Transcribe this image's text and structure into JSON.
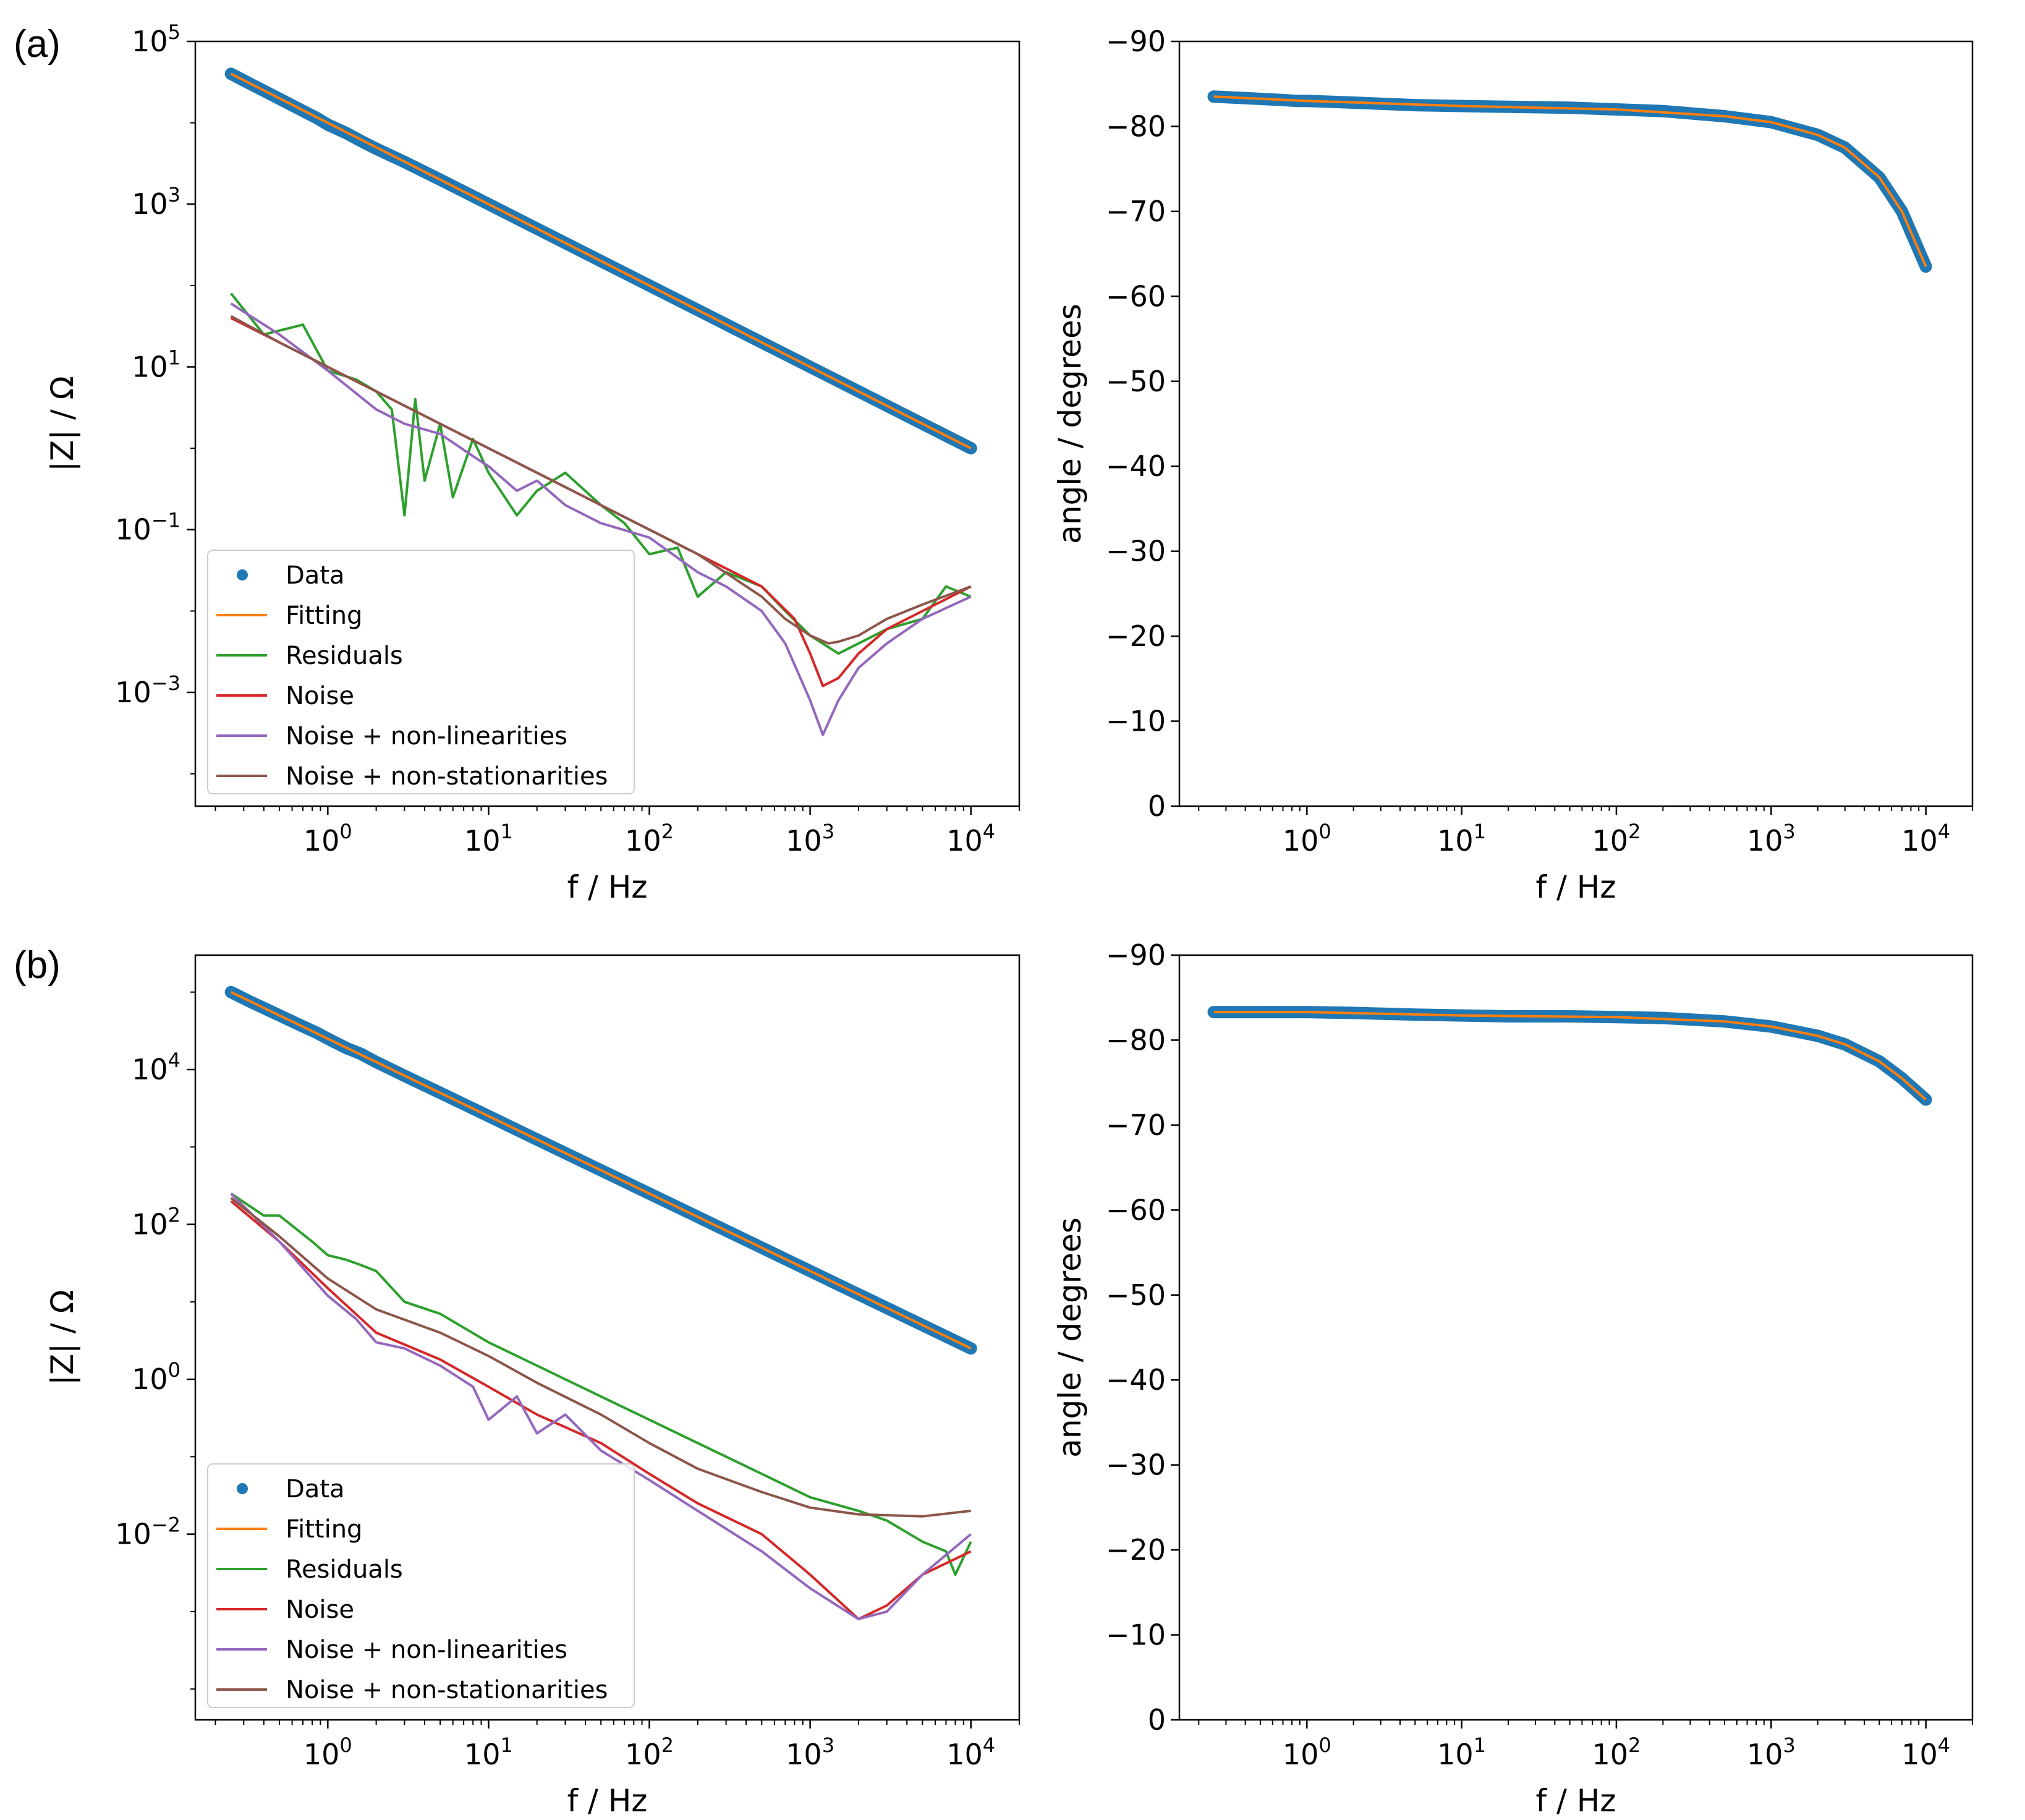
{
  "colors": {
    "data": "#1f77b4",
    "fitting": "#ff7f0e",
    "residuals": "#2ca02c",
    "noise": "#d62728",
    "noise_nonlin": "#9467bd",
    "noise_nonstat": "#8c564b"
  },
  "panels": [
    {
      "id": "a",
      "label": "(a)"
    },
    {
      "id": "b",
      "label": "(b)"
    }
  ],
  "chart_data": [
    {
      "id": "a-magnitude",
      "type": "line",
      "panel": "a",
      "title": "",
      "xlabel": "f / Hz",
      "ylabel": "|Z| / Ω",
      "xscale": "log",
      "yscale": "log",
      "xlim": [
        0.15,
        20000
      ],
      "ylim": [
        4e-05,
        100000
      ],
      "xticks": [
        {
          "base": "10",
          "exp": "0",
          "value": 1
        },
        {
          "base": "10",
          "exp": "1",
          "value": 10
        },
        {
          "base": "10",
          "exp": "2",
          "value": 100
        },
        {
          "base": "10",
          "exp": "3",
          "value": 1000
        },
        {
          "base": "10",
          "exp": "4",
          "value": 10000
        }
      ],
      "yticks": [
        {
          "base": "10",
          "exp": "5",
          "value": 100000
        },
        {
          "base": "10",
          "exp": "3",
          "value": 1000
        },
        {
          "base": "10",
          "exp": "1",
          "value": 10
        },
        {
          "base": "10",
          "exp": "−1",
          "value": 0.1
        },
        {
          "base": "10",
          "exp": "−3",
          "value": 0.001
        }
      ],
      "legend": {
        "position": "lower-left",
        "entries": [
          "Data",
          "Fitting",
          "Residuals",
          "Noise",
          "Noise + non-linearities",
          "Noise + non-stationarities"
        ]
      },
      "series": [
        {
          "name": "Data",
          "kind": "scatter",
          "color_key": "data",
          "x": [
            0.25,
            0.33,
            0.43,
            0.7,
            0.85,
            1.0,
            1.3,
            1.6,
            2,
            3,
            5,
            10,
            20,
            50,
            100,
            200,
            500,
            1000,
            2000,
            5000,
            10000
          ],
          "y": [
            40000,
            30000,
            23000,
            14000,
            11500,
            9500,
            7500,
            6000,
            4800,
            3300,
            2000,
            1000,
            500,
            200,
            100,
            50,
            20,
            10,
            5,
            2,
            1
          ]
        },
        {
          "name": "Fitting",
          "kind": "line",
          "color_key": "fitting",
          "x": [
            0.25,
            10000
          ],
          "y": [
            40000,
            1
          ]
        },
        {
          "name": "Residuals",
          "kind": "line",
          "color_key": "residuals",
          "x": [
            0.25,
            0.4,
            0.7,
            1.0,
            1.5,
            2.0,
            2.5,
            3,
            3.5,
            4,
            5,
            6,
            8,
            10,
            15,
            20,
            30,
            50,
            70,
            100,
            150,
            200,
            300,
            500,
            700,
            1000,
            1500,
            2000,
            3000,
            5000,
            7000,
            10000
          ],
          "y": [
            80,
            25,
            33,
            9,
            7,
            5,
            3,
            0.15,
            4,
            0.4,
            2,
            0.25,
            1.3,
            0.5,
            0.15,
            0.3,
            0.5,
            0.2,
            0.12,
            0.05,
            0.06,
            0.015,
            0.03,
            0.02,
            0.01,
            0.005,
            0.003,
            0.004,
            0.006,
            0.008,
            0.02,
            0.015
          ]
        },
        {
          "name": "Noise",
          "kind": "line",
          "color_key": "noise",
          "x": [
            0.25,
            0.5,
            1,
            2,
            5,
            10,
            20,
            50,
            100,
            200,
            500,
            800,
            1000,
            1200,
            1500,
            2000,
            3000,
            5000,
            10000
          ],
          "y": [
            40,
            20,
            10,
            5,
            2,
            1,
            0.5,
            0.2,
            0.1,
            0.05,
            0.02,
            0.008,
            0.003,
            0.0012,
            0.0015,
            0.003,
            0.006,
            0.01,
            0.02
          ]
        },
        {
          "name": "Noise + non-linearities",
          "kind": "line",
          "color_key": "noise_nonlin",
          "x": [
            0.25,
            0.5,
            1,
            2,
            3,
            5,
            8,
            10,
            15,
            20,
            30,
            50,
            100,
            200,
            300,
            500,
            700,
            1000,
            1200,
            1500,
            2000,
            3000,
            5000,
            10000
          ],
          "y": [
            60,
            25,
            9,
            3,
            2,
            1.5,
            0.8,
            0.6,
            0.3,
            0.4,
            0.2,
            0.12,
            0.08,
            0.03,
            0.02,
            0.01,
            0.004,
            0.0008,
            0.0003,
            0.0008,
            0.002,
            0.004,
            0.008,
            0.015
          ]
        },
        {
          "name": "Noise + non-stationarities",
          "kind": "line",
          "color_key": "noise_nonstat",
          "x": [
            0.25,
            0.5,
            1,
            2,
            5,
            10,
            20,
            50,
            100,
            200,
            500,
            700,
            1000,
            1300,
            1500,
            2000,
            3000,
            5000,
            10000
          ],
          "y": [
            42,
            20,
            10,
            5,
            2,
            1,
            0.5,
            0.2,
            0.1,
            0.05,
            0.015,
            0.008,
            0.005,
            0.004,
            0.0042,
            0.005,
            0.008,
            0.012,
            0.02
          ]
        }
      ]
    },
    {
      "id": "a-phase",
      "type": "scatter",
      "panel": "a",
      "title": "",
      "xlabel": "f / Hz",
      "ylabel": "angle / degrees",
      "xscale": "log",
      "yscale": "linear",
      "xlim": [
        0.15,
        20000
      ],
      "ylim": [
        0,
        -90
      ],
      "xticks": [
        {
          "base": "10",
          "exp": "0",
          "value": 1
        },
        {
          "base": "10",
          "exp": "1",
          "value": 10
        },
        {
          "base": "10",
          "exp": "2",
          "value": 100
        },
        {
          "base": "10",
          "exp": "3",
          "value": 1000
        },
        {
          "base": "10",
          "exp": "4",
          "value": 10000
        }
      ],
      "yticks": [
        {
          "label": "−90",
          "value": -90
        },
        {
          "label": "−80",
          "value": -80
        },
        {
          "label": "−70",
          "value": -70
        },
        {
          "label": "−60",
          "value": -60
        },
        {
          "label": "−50",
          "value": -50
        },
        {
          "label": "−40",
          "value": -40
        },
        {
          "label": "−30",
          "value": -30
        },
        {
          "label": "−20",
          "value": -20
        },
        {
          "label": "−10",
          "value": -10
        },
        {
          "label": "0",
          "value": 0
        }
      ],
      "series": [
        {
          "name": "Data",
          "kind": "scatter",
          "color_key": "data",
          "x": [
            0.25,
            0.33,
            0.43,
            0.7,
            0.85,
            1,
            2,
            5,
            10,
            20,
            50,
            100,
            200,
            500,
            1000,
            2000,
            3000,
            5000,
            7000,
            10000
          ],
          "y": [
            -83.5,
            -83.4,
            -83.3,
            -83.1,
            -83.0,
            -83,
            -82.8,
            -82.5,
            -82.4,
            -82.3,
            -82.2,
            -82.0,
            -81.8,
            -81.2,
            -80.5,
            -79,
            -77.5,
            -74,
            -70,
            -63.5
          ]
        },
        {
          "name": "Fitting",
          "kind": "line",
          "color_key": "fitting",
          "x": [
            0.25,
            1,
            10,
            100,
            500,
            1000,
            2000,
            3000,
            5000,
            7000,
            10000
          ],
          "y": [
            -83.5,
            -83,
            -82.4,
            -82.0,
            -81.2,
            -80.5,
            -79,
            -77.5,
            -74,
            -70,
            -63.5
          ]
        }
      ]
    },
    {
      "id": "b-magnitude",
      "type": "line",
      "panel": "b",
      "title": "",
      "xlabel": "f / Hz",
      "ylabel": "|Z| / Ω",
      "xscale": "log",
      "yscale": "log",
      "xlim": [
        0.15,
        20000
      ],
      "ylim": [
        4e-05,
        300000
      ],
      "xticks": [
        {
          "base": "10",
          "exp": "0",
          "value": 1
        },
        {
          "base": "10",
          "exp": "1",
          "value": 10
        },
        {
          "base": "10",
          "exp": "2",
          "value": 100
        },
        {
          "base": "10",
          "exp": "3",
          "value": 1000
        },
        {
          "base": "10",
          "exp": "4",
          "value": 10000
        }
      ],
      "yticks": [
        {
          "base": "10",
          "exp": "4",
          "value": 10000
        },
        {
          "base": "10",
          "exp": "2",
          "value": 100
        },
        {
          "base": "10",
          "exp": "0",
          "value": 1
        },
        {
          "base": "10",
          "exp": "−2",
          "value": 0.01
        }
      ],
      "legend": {
        "position": "lower-left",
        "entries": [
          "Data",
          "Fitting",
          "Residuals",
          "Noise",
          "Noise + non-linearities",
          "Noise + non-stationarities"
        ]
      },
      "series": [
        {
          "name": "Data",
          "kind": "scatter",
          "color_key": "data",
          "x": [
            0.25,
            0.33,
            0.43,
            0.7,
            0.85,
            1.0,
            1.3,
            1.6,
            2,
            3,
            5,
            10,
            20,
            50,
            100,
            200,
            500,
            1000,
            2000,
            5000,
            10000
          ],
          "y": [
            100000,
            75000,
            58000,
            36000,
            30000,
            25000,
            19000,
            16000,
            12500,
            8300,
            5000,
            2500,
            1250,
            500,
            250,
            125,
            50,
            25,
            12.5,
            5,
            2.5
          ]
        },
        {
          "name": "Fitting",
          "kind": "line",
          "color_key": "fitting",
          "x": [
            0.25,
            10000
          ],
          "y": [
            100000,
            2.5
          ]
        },
        {
          "name": "Residuals",
          "kind": "line",
          "color_key": "residuals",
          "x": [
            0.25,
            0.4,
            0.5,
            0.8,
            1,
            1.3,
            1.6,
            2,
            3,
            5,
            10,
            20,
            50,
            100,
            200,
            500,
            1000,
            2000,
            3000,
            5000,
            7000,
            8000,
            10000
          ],
          "y": [
            250,
            130,
            130,
            60,
            40,
            35,
            30,
            25,
            10,
            7,
            3,
            1.5,
            0.6,
            0.3,
            0.15,
            0.06,
            0.03,
            0.02,
            0.015,
            0.008,
            0.006,
            0.003,
            0.008
          ]
        },
        {
          "name": "Noise",
          "kind": "line",
          "color_key": "noise",
          "x": [
            0.25,
            0.5,
            1,
            2,
            5,
            10,
            20,
            50,
            100,
            200,
            500,
            1000,
            2000,
            3000,
            5000,
            10000
          ],
          "y": [
            200,
            60,
            15,
            4,
            1.8,
            0.8,
            0.35,
            0.15,
            0.06,
            0.025,
            0.01,
            0.003,
            0.0008,
            0.0012,
            0.003,
            0.006
          ]
        },
        {
          "name": "Noise + non-linearities",
          "kind": "line",
          "color_key": "noise_nonlin",
          "x": [
            0.25,
            0.5,
            1,
            1.5,
            2,
            3,
            5,
            8,
            10,
            15,
            20,
            30,
            50,
            100,
            200,
            500,
            1000,
            2000,
            3000,
            5000,
            10000
          ],
          "y": [
            250,
            60,
            12,
            6,
            3,
            2.5,
            1.5,
            0.8,
            0.3,
            0.6,
            0.2,
            0.35,
            0.12,
            0.05,
            0.02,
            0.006,
            0.002,
            0.0008,
            0.001,
            0.003,
            0.01
          ]
        },
        {
          "name": "Noise + non-stationarities",
          "kind": "line",
          "color_key": "noise_nonstat",
          "x": [
            0.25,
            0.5,
            1,
            2,
            5,
            10,
            20,
            50,
            100,
            200,
            500,
            1000,
            2000,
            5000,
            10000
          ],
          "y": [
            220,
            70,
            20,
            8,
            4,
            2,
            0.9,
            0.35,
            0.15,
            0.07,
            0.035,
            0.022,
            0.018,
            0.017,
            0.02
          ]
        }
      ]
    },
    {
      "id": "b-phase",
      "type": "scatter",
      "panel": "b",
      "title": "",
      "xlabel": "f / Hz",
      "ylabel": "angle / degrees",
      "xscale": "log",
      "yscale": "linear",
      "xlim": [
        0.15,
        20000
      ],
      "ylim": [
        0,
        -90
      ],
      "xticks": [
        {
          "base": "10",
          "exp": "0",
          "value": 1
        },
        {
          "base": "10",
          "exp": "1",
          "value": 10
        },
        {
          "base": "10",
          "exp": "2",
          "value": 100
        },
        {
          "base": "10",
          "exp": "3",
          "value": 1000
        },
        {
          "base": "10",
          "exp": "4",
          "value": 10000
        }
      ],
      "yticks": [
        {
          "label": "−90",
          "value": -90
        },
        {
          "label": "−80",
          "value": -80
        },
        {
          "label": "−70",
          "value": -70
        },
        {
          "label": "−60",
          "value": -60
        },
        {
          "label": "−50",
          "value": -50
        },
        {
          "label": "−40",
          "value": -40
        },
        {
          "label": "−30",
          "value": -30
        },
        {
          "label": "−20",
          "value": -20
        },
        {
          "label": "−10",
          "value": -10
        },
        {
          "label": "0",
          "value": 0
        }
      ],
      "series": [
        {
          "name": "Data",
          "kind": "scatter",
          "color_key": "data",
          "x": [
            0.25,
            0.33,
            0.43,
            0.7,
            0.85,
            1,
            2,
            5,
            10,
            20,
            50,
            100,
            200,
            500,
            1000,
            2000,
            3000,
            5000,
            7000,
            10000
          ],
          "y": [
            -83.3,
            -83.3,
            -83.3,
            -83.3,
            -83.3,
            -83.3,
            -83.2,
            -83.0,
            -82.9,
            -82.8,
            -82.8,
            -82.7,
            -82.6,
            -82.2,
            -81.6,
            -80.5,
            -79.5,
            -77.5,
            -75.5,
            -73
          ]
        },
        {
          "name": "Fitting",
          "kind": "line",
          "color_key": "fitting",
          "x": [
            0.25,
            1,
            10,
            100,
            500,
            1000,
            2000,
            3000,
            5000,
            7000,
            10000
          ],
          "y": [
            -83.3,
            -83.3,
            -82.9,
            -82.7,
            -82.2,
            -81.6,
            -80.5,
            -79.5,
            -77.5,
            -75.5,
            -73
          ]
        }
      ]
    }
  ]
}
